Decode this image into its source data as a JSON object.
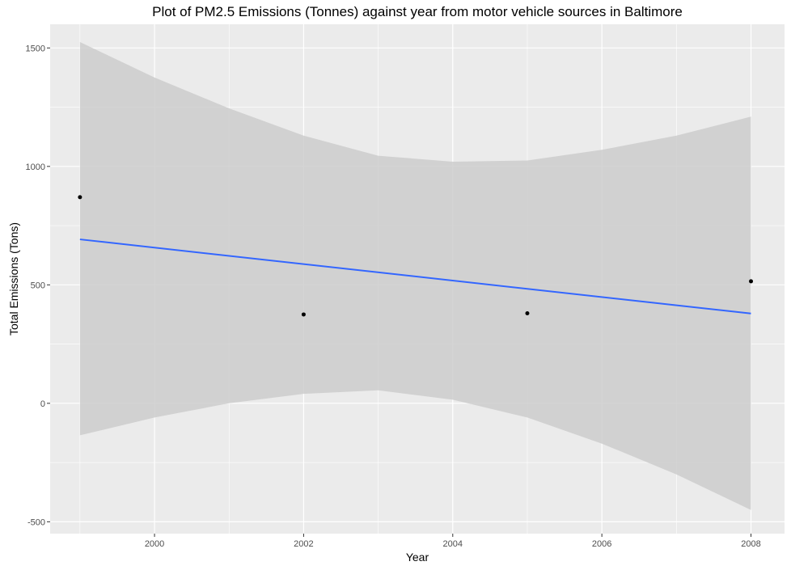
{
  "chart_data": {
    "type": "scatter",
    "title": "Plot of PM2.5 Emissions (Tonnes) against year from motor vehicle sources in Baltimore",
    "xlabel": "Year",
    "ylabel": "Total Emissions (Tons)",
    "xlim": [
      1998.6,
      2008.45
    ],
    "ylim": [
      -550,
      1600
    ],
    "x_ticks": [
      2000,
      2002,
      2004,
      2006,
      2008
    ],
    "x_tick_labels": [
      "2000",
      "2002",
      "2004",
      "2006",
      "2008"
    ],
    "y_ticks": [
      -500,
      0,
      500,
      1000,
      1500
    ],
    "y_tick_labels": [
      "-500",
      "0",
      "500",
      "1000",
      "1500"
    ],
    "points": [
      {
        "x": 1999,
        "y": 870
      },
      {
        "x": 2002,
        "y": 375
      },
      {
        "x": 2005,
        "y": 380
      },
      {
        "x": 2008,
        "y": 515
      }
    ],
    "fit_line": {
      "method": "linear",
      "x": [
        1999,
        2008
      ],
      "y": [
        692,
        379
      ],
      "color": "#3366FF"
    },
    "confidence_band": {
      "x": [
        1999,
        2000,
        2001,
        2002,
        2003,
        2004,
        2005,
        2006,
        2007,
        2008
      ],
      "lower": [
        -135,
        -60,
        0,
        40,
        55,
        15,
        -60,
        -170,
        -300,
        -450
      ],
      "upper": [
        1525,
        1375,
        1245,
        1130,
        1045,
        1020,
        1025,
        1070,
        1130,
        1210
      ],
      "color": "#CCCCCC"
    },
    "grid": true,
    "legend": "none",
    "panel_background": "#EBEBEB",
    "point_color": "#000000"
  }
}
